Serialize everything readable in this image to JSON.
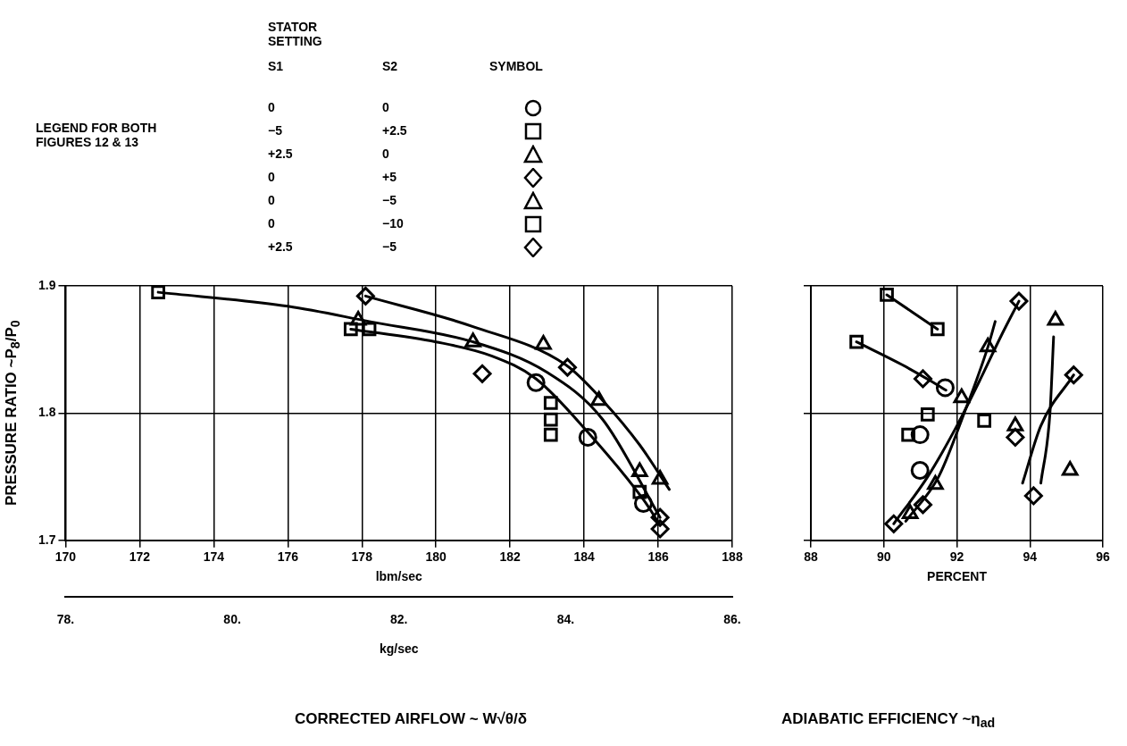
{
  "chart_data": [
    {
      "type": "scatter",
      "xlabel": "lbm/sec",
      "ylabel": "PRESSURE RATIO ~P$_{8}$/P$_{0}$",
      "xlim": [
        170,
        188
      ],
      "xticks": [
        170,
        172,
        174,
        176,
        178,
        180,
        182,
        184,
        186,
        188
      ],
      "ylim": [
        1.7,
        1.9
      ],
      "yticks": [
        1.7,
        1.8,
        1.9
      ],
      "x2lim": [
        78,
        86
      ],
      "x2ticks": [
        {
          "value": 78,
          "label": "78."
        },
        {
          "value": 80,
          "label": "80."
        },
        {
          "value": 82,
          "label": "82."
        },
        {
          "value": 84,
          "label": "84."
        },
        {
          "value": 86,
          "label": "86."
        }
      ],
      "x2label": "kg/sec",
      "grid": true,
      "annotations": [
        "CORRECTED AIRFLOW ~ W√θ/δ",
        "LEGEND FOR BOTH FIGURES 12 & 13",
        "STATOR SETTING",
        "S1",
        "S2",
        "SYMBOL",
        "0",
        "0",
        "−5",
        "+2.5",
        "+2.5",
        "0",
        "0",
        "+5",
        "0",
        "−5",
        "0",
        "−10",
        "+2.5",
        "−5"
      ],
      "series": [
        {
          "type": "scatter",
          "marker": "circle",
          "color": "#000000",
          "x": [
            182.7,
            184.1,
            185.6
          ],
          "values": [
            1.824,
            1.781,
            1.729
          ]
        },
        {
          "type": "scatter",
          "marker": "square",
          "color": "#000000",
          "x": [
            177.7,
            183.1,
            183.1,
            183.1
          ],
          "values": [
            1.866,
            1.808,
            1.795,
            1.783
          ]
        },
        {
          "type": "scatter",
          "marker": "triangle",
          "color": "#000000",
          "x": [
            182.9,
            184.4,
            186.05
          ],
          "values": [
            1.854,
            1.81,
            1.748
          ]
        },
        {
          "type": "scatter",
          "marker": "diamond",
          "color": "#000000",
          "x": [
            178.1,
            183.55,
            186.05
          ],
          "values": [
            1.892,
            1.836,
            1.718
          ]
        },
        {
          "type": "scatter",
          "marker": "triangle",
          "color": "#000000",
          "x": [
            177.9,
            181.0,
            185.5
          ],
          "values": [
            1.873,
            1.856,
            1.754
          ]
        },
        {
          "type": "scatter",
          "marker": "square",
          "color": "#000000",
          "x": [
            172.5,
            178.2,
            185.5
          ],
          "values": [
            1.895,
            1.866,
            1.738
          ]
        },
        {
          "type": "scatter",
          "marker": "diamond",
          "color": "#000000",
          "x": [
            181.25,
            186.05
          ],
          "values": [
            1.831,
            1.709
          ]
        },
        {
          "type": "line",
          "marker": "none",
          "color": "#000000",
          "x": [
            178.1,
            181,
            183.5,
            184.5,
            185.5,
            186.3
          ],
          "values": [
            1.892,
            1.868,
            1.838,
            1.81,
            1.775,
            1.74
          ]
        },
        {
          "type": "line",
          "marker": "none",
          "color": "#000000",
          "x": [
            172.5,
            176,
            178.2,
            181,
            183,
            184.5,
            186.05
          ],
          "values": [
            1.895,
            1.884,
            1.872,
            1.856,
            1.832,
            1.795,
            1.718
          ]
        },
        {
          "type": "line",
          "marker": "none",
          "color": "#000000",
          "x": [
            177.7,
            180,
            181.5,
            182.7,
            184.1,
            185.6,
            186.05
          ],
          "values": [
            1.866,
            1.856,
            1.845,
            1.827,
            1.785,
            1.732,
            1.712
          ]
        }
      ]
    },
    {
      "type": "scatter",
      "xlabel": "PERCENT",
      "xlim": [
        88,
        96
      ],
      "xticks": [
        88,
        90,
        92,
        94,
        96
      ],
      "ylim": [
        1.7,
        1.9
      ],
      "yticks": [
        1.7,
        1.8,
        1.9
      ],
      "tick_labels": "x",
      "grid": true,
      "annotations": [
        "ADIABATIC EFFICIENCY ~η$_{ad}$"
      ],
      "series": [
        {
          "type": "scatter",
          "marker": "circle",
          "color": "#000000",
          "x": [
            90.99,
            90.99,
            91.68
          ],
          "values": [
            1.755,
            1.783,
            1.82
          ]
        },
        {
          "type": "scatter",
          "marker": "square",
          "color": "#000000",
          "x": [
            89.25,
            90.67,
            91.2,
            92.75
          ],
          "values": [
            1.856,
            1.783,
            1.799,
            1.794
          ]
        },
        {
          "type": "scatter",
          "marker": "triangle",
          "color": "#000000",
          "x": [
            91.41,
            92.85
          ],
          "values": [
            1.744,
            1.852
          ]
        },
        {
          "type": "scatter",
          "marker": "diamond",
          "color": "#000000",
          "x": [
            91.07,
            94.1,
            93.6,
            95.2,
            93.7
          ],
          "values": [
            1.728,
            1.735,
            1.781,
            1.83,
            1.888
          ]
        },
        {
          "type": "scatter",
          "marker": "triangle",
          "color": "#000000",
          "x": [
            90.72,
            92.13,
            93.6,
            95.1,
            94.7
          ],
          "values": [
            1.721,
            1.812,
            1.79,
            1.755,
            1.873
          ]
        },
        {
          "type": "scatter",
          "marker": "square",
          "color": "#000000",
          "x": [
            90.08,
            91.47
          ],
          "values": [
            1.893,
            1.866
          ]
        },
        {
          "type": "scatter",
          "marker": "diamond",
          "color": "#000000",
          "x": [
            90.27,
            91.07
          ],
          "values": [
            1.713,
            1.827
          ]
        },
        {
          "type": "line",
          "marker": "none",
          "color": "#000000",
          "x": [
            90.08,
            91.47
          ],
          "values": [
            1.893,
            1.866
          ]
        },
        {
          "type": "line",
          "marker": "none",
          "color": "#000000",
          "x": [
            89.25,
            90.5,
            91.3,
            91.7
          ],
          "values": [
            1.856,
            1.838,
            1.825,
            1.818
          ]
        },
        {
          "type": "line",
          "marker": "none",
          "color": "#000000",
          "x": [
            90.27,
            91.2,
            92.0,
            92.7,
            93.2,
            93.7
          ],
          "values": [
            1.713,
            1.75,
            1.79,
            1.83,
            1.86,
            1.888
          ]
        },
        {
          "type": "line",
          "marker": "none",
          "color": "#000000",
          "x": [
            90.6,
            91.5,
            92.2,
            92.85,
            93.05
          ],
          "values": [
            1.715,
            1.75,
            1.8,
            1.852,
            1.872
          ]
        },
        {
          "type": "line",
          "marker": "none",
          "color": "#000000",
          "x": [
            93.8,
            94.3,
            95.2
          ],
          "values": [
            1.745,
            1.79,
            1.83
          ]
        },
        {
          "type": "line",
          "marker": "none",
          "color": "#000000",
          "x": [
            94.3,
            94.55,
            94.65
          ],
          "values": [
            1.745,
            1.8,
            1.86
          ]
        }
      ]
    }
  ]
}
